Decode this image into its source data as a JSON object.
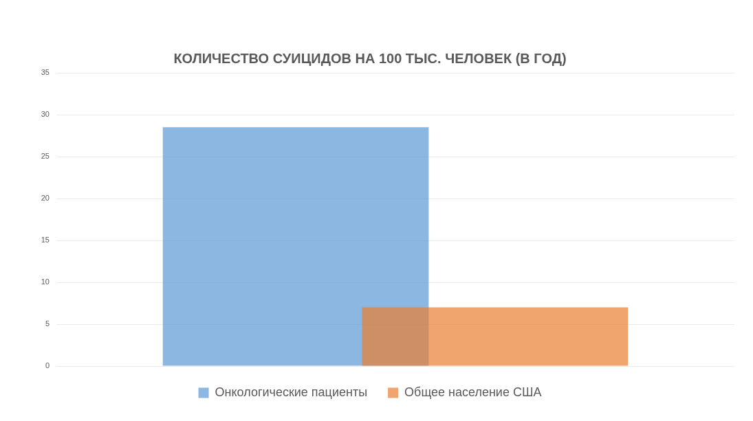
{
  "chart_data": {
    "type": "bar",
    "title": "КОЛИЧЕСТВО СУИЦИДОВ НА 100 ТЫС. ЧЕЛОВЕК (В ГОД)",
    "categories": [
      null
    ],
    "series": [
      {
        "name": "Онкологические пациенты",
        "color": "#8cb7e0",
        "values": [
          28.5
        ]
      },
      {
        "name": "Общее население США",
        "color": "#f0a46e",
        "values": [
          7
        ]
      }
    ],
    "ylim": [
      0,
      35
    ],
    "yticks": [
      0,
      5,
      10,
      15,
      20,
      25,
      30,
      35
    ],
    "grid": "y",
    "legend": "bottom",
    "tick_labels": "y"
  }
}
